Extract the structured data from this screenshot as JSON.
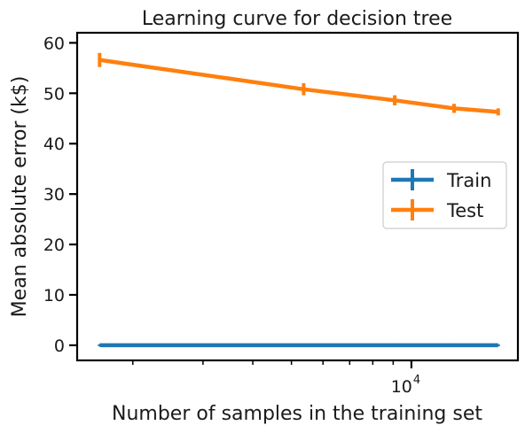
{
  "chart_data": {
    "type": "line",
    "title": "Learning curve for decision tree",
    "xlabel": "Number of samples in the training set",
    "ylabel": "Mean absolute error (k$)",
    "x_scale": "log",
    "xlim": [
      1450,
      18500
    ],
    "ylim": [
      -3,
      62
    ],
    "x_major_ticks": [
      {
        "value": 10000,
        "label_base": "10",
        "label_exp": "4"
      }
    ],
    "x_minor_ticks": [
      2000,
      3000,
      4000,
      5000,
      6000,
      7000,
      8000,
      9000
    ],
    "y_ticks": [
      0,
      10,
      20,
      30,
      40,
      50,
      60
    ],
    "x": [
      1651,
      5366,
      9081,
      12796,
      16512
    ],
    "series": [
      {
        "name": "Train",
        "color": "#1f77b4",
        "values": [
          0,
          0,
          0,
          0,
          0
        ],
        "errors": [
          0,
          0,
          0,
          0,
          0
        ]
      },
      {
        "name": "Test",
        "color": "#ff7f0e",
        "values": [
          56.6,
          50.8,
          48.6,
          47.0,
          46.3
        ],
        "errors": [
          1.4,
          1.2,
          1.0,
          0.9,
          0.7
        ]
      }
    ],
    "legend_position": "center-right",
    "grid": false
  }
}
